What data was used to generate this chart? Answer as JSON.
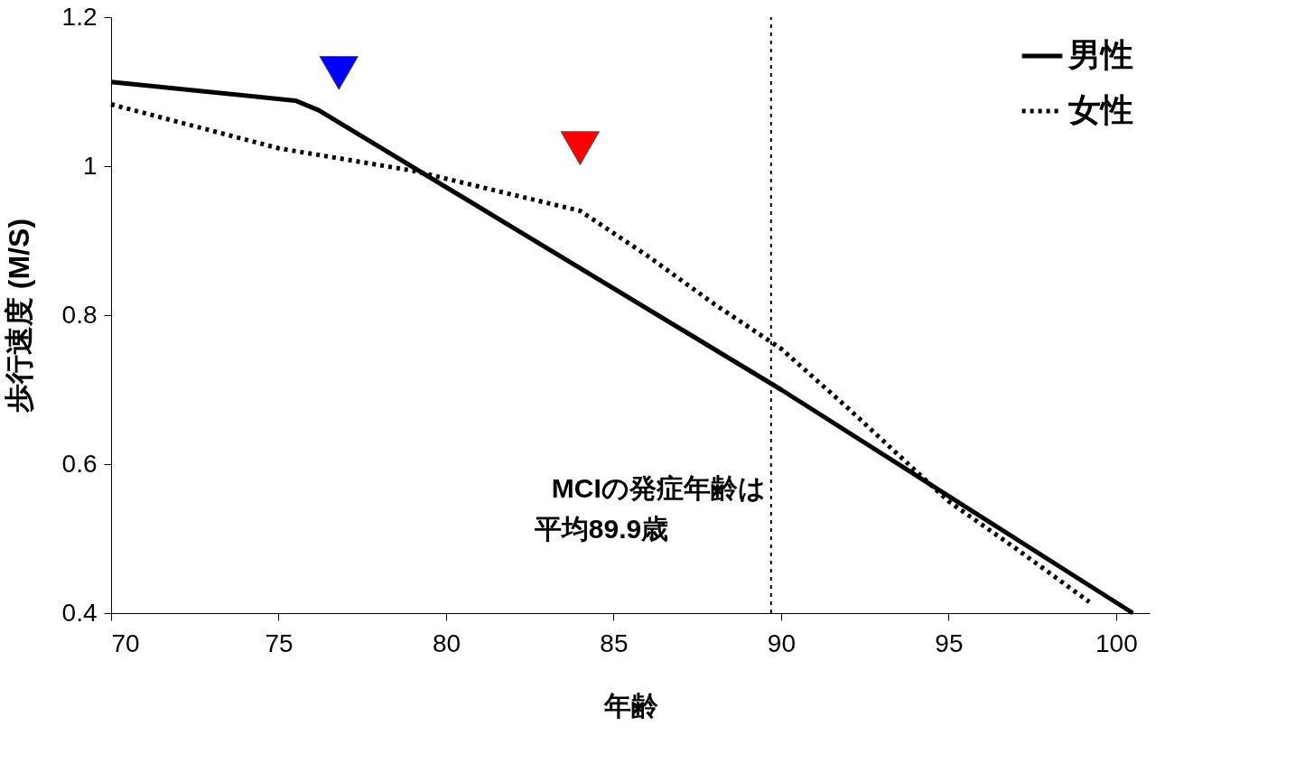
{
  "chart_data": {
    "type": "line",
    "xlabel": "年齢",
    "ylabel": "歩行速度 (M/S)",
    "xlim": [
      70,
      101
    ],
    "xticks": [
      70,
      75,
      80,
      85,
      90,
      95,
      100
    ],
    "ylim": [
      0.4,
      1.2
    ],
    "yticks": [
      0.4,
      0.6,
      0.8,
      1,
      1.2
    ],
    "grid": false,
    "legend": "top right",
    "series": [
      {
        "name": "男性",
        "color": "#000000",
        "line_style": "solid",
        "marker": "none",
        "x": [
          70,
          75.5,
          76.2,
          90,
          100.5
        ],
        "values": [
          1.113,
          1.088,
          1.075,
          0.7,
          0.4
        ]
      },
      {
        "name": "女性",
        "color": "#000000",
        "line_style": "dotted",
        "marker": "none",
        "x": [
          70,
          75,
          79,
          84,
          86,
          88,
          90,
          92,
          95,
          97,
          99.2
        ],
        "values": [
          1.083,
          1.024,
          0.994,
          0.94,
          0.88,
          0.815,
          0.755,
          0.675,
          0.55,
          0.487,
          0.415
        ]
      },
      {
        "type": "scatter",
        "color": "#0000ff",
        "marker": "triangle",
        "x": [
          76.8
        ],
        "values": [
          1.125
        ]
      },
      {
        "type": "scatter",
        "color": "#ff0000",
        "marker": "triangle",
        "x": [
          84
        ],
        "values": [
          1.024
        ]
      }
    ],
    "ref_lines": [
      {
        "axis": "x",
        "value": 89.7,
        "label": "MCIの発症年齢は",
        "line_style": "dotted",
        "color": "#000000"
      }
    ],
    "annotations": [
      "平均89.9歳"
    ]
  }
}
